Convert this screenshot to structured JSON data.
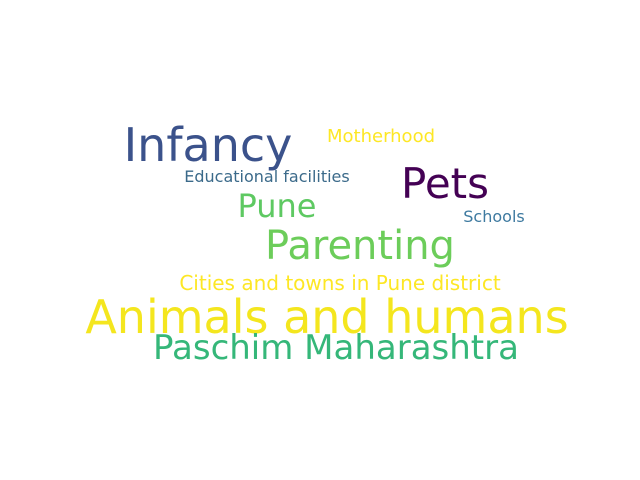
{
  "words": [
    {
      "text": "Infancy",
      "color": "#3b528b"
    },
    {
      "text": "Motherhood",
      "color": "#fde725"
    },
    {
      "text": "Educational facilities",
      "color": "#3b6a8a"
    },
    {
      "text": "Pets",
      "color": "#440154"
    },
    {
      "text": "Pune",
      "color": "#5ec962"
    },
    {
      "text": "Schools",
      "color": "#3e7aa0"
    },
    {
      "text": "Parenting",
      "color": "#6ccd5a"
    },
    {
      "text": "Cities and towns in Pune district",
      "color": "#fde725"
    },
    {
      "text": "Animals and humans",
      "color": "#f4e61e"
    },
    {
      "text": "Paschim Maharashtra",
      "color": "#35b779"
    }
  ]
}
